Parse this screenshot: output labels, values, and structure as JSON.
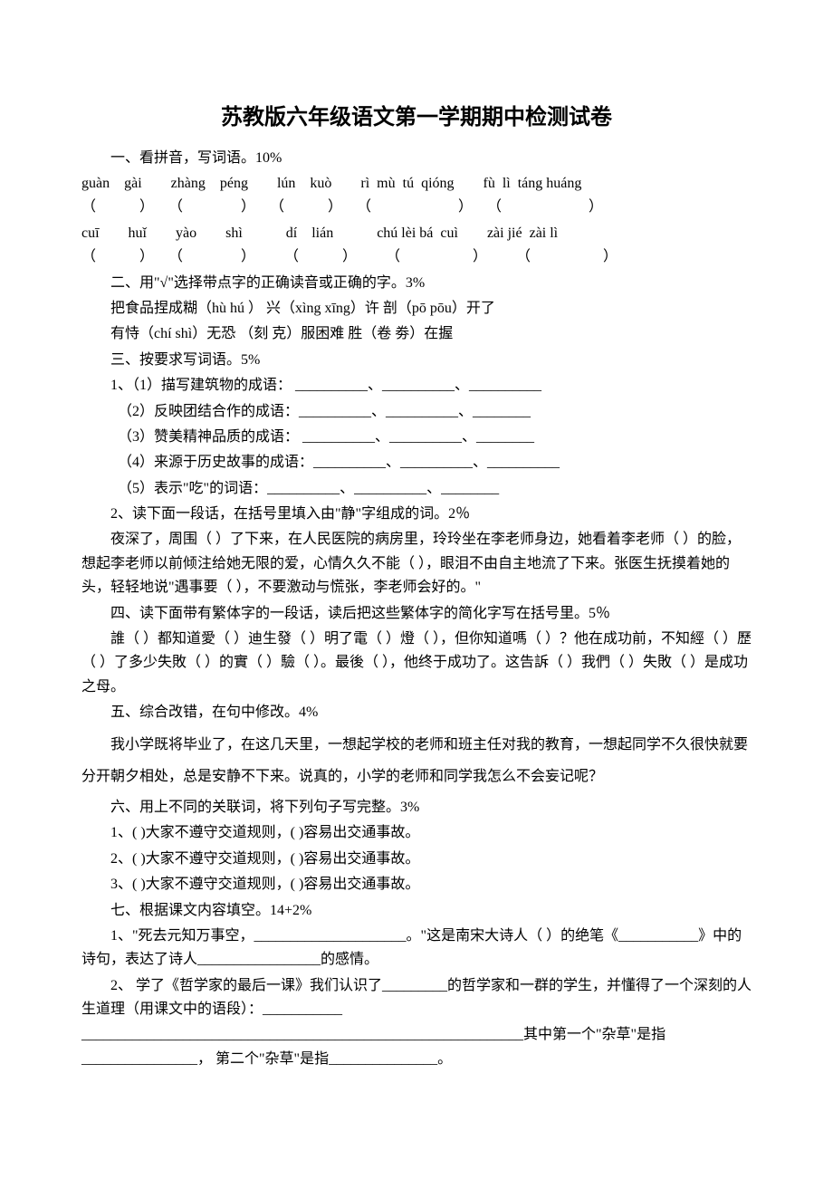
{
  "title": "苏教版六年级语文第一学期期中检测试卷",
  "section1": {
    "heading": "一、看拼音，写词语。10%",
    "pinyin_row1": "guàn    gài        zhàng    péng        lún    kuò        rì  mù  tú  qióng        fù  lì  táng huáng",
    "paren_row1": "（            ）    （                ）    （            ）    （                        ）    （                        ）",
    "pinyin_row2": "cuī        huǐ        yào        shì            dí    lián            chú lèi bá  cuì        zài jié  zài lì",
    "paren_row2": "（            ）    （                ）        （            ）        （                    ）        （                    ）"
  },
  "section2": {
    "heading": "二、用\"√\"选择带点字的正确读音或正确的字。3%",
    "line1": "把食品捏成糊（hù  hú    ）    兴（xìng xīng）许        剖（pō  pōu）开了",
    "line2": "有恃（chí  shì）无恐        （刻 克）服困难            胜（卷 劵）在握"
  },
  "section3": {
    "heading": "三、按要求写词语。5%",
    "item1": "1、（1）描写建筑物的成语：  __________、__________、__________",
    "item2": "（2）反映团结合作的成语：__________、__________、________",
    "item3": "（3）赞美精神品质的成语：  __________、__________、________",
    "item4": "（4）来源于历史故事的成语：__________、__________、__________",
    "item5": "（5）表示\"吃\"的词语：__________、__________、________",
    "q2_heading": "2、读下面一段话，在括号里填入由\"静\"字组成的词。2％",
    "q2_para": "夜深了，周围（        ）了下来，在人民医院的病房里，玲玲坐在李老师身边，她看着李老师（        ）的脸，想起李老师以前倾注给她无限的爱，心情久久不能（        ），眼泪不由自主地流了下来。张医生抚摸着她的头，轻轻地说\"遇事要（        ），不要激动与慌张，李老师会好的。\""
  },
  "section4": {
    "heading": "四、读下面带有繁体字的一段话，读后把这些繁体字的简化字写在括号里。5％",
    "para": "誰（    ）都知道愛（        ）迪生發（    ）明了電（    ）燈（        ），但你知道嗎（        ）？他在成功前，不知經（        ）歷（        ）了多少失敗（    ）的實（        ）驗（    ）。最後（        ），他终于成功了。这告訴（        ）我們（        ）失敗（        ）是成功之母。"
  },
  "section5": {
    "heading": "五、综合改错，在句中修改。4%",
    "para": "我小学既将毕业了，在这几天里，一想起学校的老师和班主任对我的教育，一想起同学不久很快就要分开朝夕相处，总是安静不下来。说真的，小学的老师和同学我怎么不会妄记呢？"
  },
  "section6": {
    "heading": "六、用上不同的关联词，将下列句子写完整。3%",
    "line1": "1、(                    )大家不遵守交道规则，(                    )容易出交通事故。",
    "line2": "2、(                    )大家不遵守交道规则，(                    )容易出交通事故。",
    "line3": "3、(                    )大家不遵守交道规则，(                    )容易出交通事故。"
  },
  "section7": {
    "heading": "七、根据课文内容填空。14+2%",
    "q1": "1、\"死去元知万事空，_____________________。\"这是南宋大诗人（                ）的绝笔《___________》中的诗句，表达了诗人_________________的感情。",
    "q2": "2、 学了《哲学家的最后一课》我们认识了_________的哲学家和一群的学生，并懂得了一个深刻的人生道理（用课文中的语段）：___________",
    "q2_cont": "_____________________________________________________________其中第一个\"杂草\"是指________________，  第二个\"杂草\"是指_______________。"
  }
}
